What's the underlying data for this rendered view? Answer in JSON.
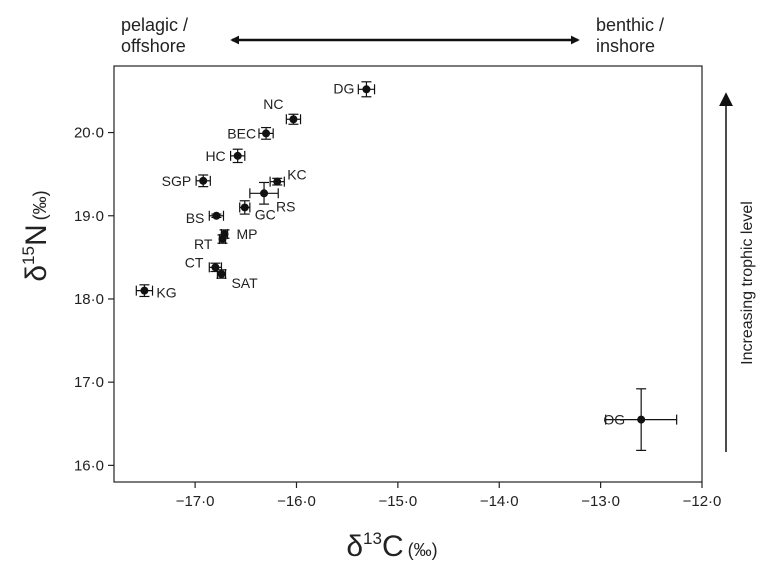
{
  "chart_data": {
    "type": "scatter",
    "xlabel": {
      "symbol": "δ",
      "superscript": "13",
      "element": "C",
      "unit": "(‰)"
    },
    "ylabel": {
      "symbol": "δ",
      "superscript": "15",
      "element": "N",
      "unit": "(‰)"
    },
    "xlim": [
      -17.8,
      -12.0
    ],
    "ylim": [
      15.8,
      20.8
    ],
    "x_ticks": [
      -17.0,
      -16.0,
      -15.0,
      -14.0,
      -13.0,
      -12.0
    ],
    "x_tick_labels": [
      "−17·0",
      "−16·0",
      "−15·0",
      "−14·0",
      "−13·0",
      "−12·0"
    ],
    "y_ticks": [
      16.0,
      17.0,
      18.0,
      19.0,
      20.0
    ],
    "y_tick_labels": [
      "16·0",
      "17·0",
      "18·0",
      "19·0",
      "20·0"
    ],
    "grid": false,
    "points": [
      {
        "label": "DG",
        "x": -15.31,
        "y": 20.52,
        "xerr": 0.08,
        "yerr": 0.09
      },
      {
        "label": "NC",
        "x": -16.03,
        "y": 20.16,
        "xerr": 0.07,
        "yerr": 0.06
      },
      {
        "label": "BEC",
        "x": -16.3,
        "y": 19.99,
        "xerr": 0.07,
        "yerr": 0.07
      },
      {
        "label": "HC",
        "x": -16.58,
        "y": 19.72,
        "xerr": 0.07,
        "yerr": 0.08
      },
      {
        "label": "SGP",
        "x": -16.92,
        "y": 19.42,
        "xerr": 0.07,
        "yerr": 0.07
      },
      {
        "label": "KC",
        "x": -16.19,
        "y": 19.41,
        "xerr": 0.07,
        "yerr": 0.04
      },
      {
        "label": "RS",
        "x": -16.32,
        "y": 19.27,
        "xerr": 0.14,
        "yerr": 0.13
      },
      {
        "label": "GC",
        "x": -16.51,
        "y": 19.1,
        "xerr": 0.05,
        "yerr": 0.08
      },
      {
        "label": "BS",
        "x": -16.79,
        "y": 19.0,
        "xerr": 0.07,
        "yerr": 0.02
      },
      {
        "label": "MP",
        "x": -16.71,
        "y": 18.78,
        "xerr": 0.03,
        "yerr": 0.05
      },
      {
        "label": "RT",
        "x": -16.73,
        "y": 18.72,
        "xerr": 0.03,
        "yerr": 0.05
      },
      {
        "label": "CT",
        "x": -16.8,
        "y": 18.38,
        "xerr": 0.06,
        "yerr": 0.05
      },
      {
        "label": "SAT",
        "x": -16.74,
        "y": 18.3,
        "xerr": 0.04,
        "yerr": 0.05
      },
      {
        "label": "KG",
        "x": -17.5,
        "y": 18.1,
        "xerr": 0.08,
        "yerr": 0.07
      },
      {
        "label": "OG",
        "x": -12.6,
        "y": 16.55,
        "xerr": 0.35,
        "yerr": 0.37
      }
    ],
    "annotations": {
      "top_left": [
        "pelagic /",
        "offshore"
      ],
      "top_right": [
        "benthic /",
        "inshore"
      ],
      "right": "Increasing trophic level"
    }
  }
}
